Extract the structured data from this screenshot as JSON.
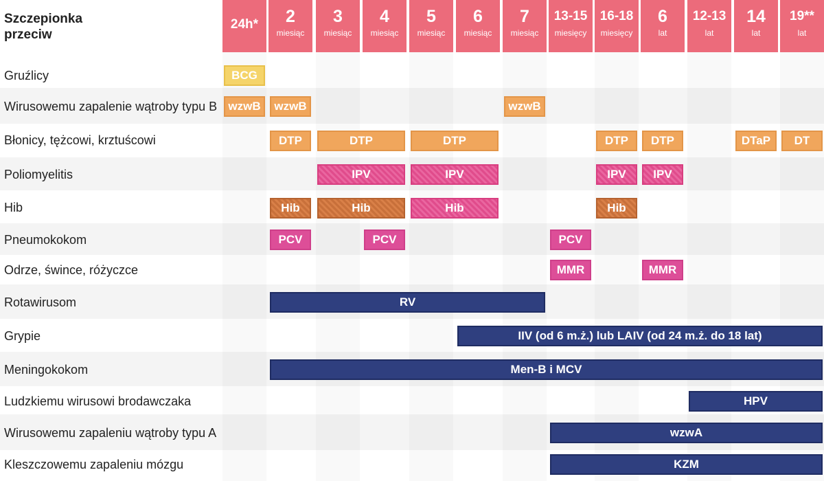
{
  "corner_title": "Szczepionka przeciw",
  "columns": [
    {
      "big": "24h*",
      "small": ""
    },
    {
      "big": "2",
      "small": "miesiąc"
    },
    {
      "big": "3",
      "small": "miesiąc"
    },
    {
      "big": "4",
      "small": "miesiąc"
    },
    {
      "big": "5",
      "small": "miesiąc"
    },
    {
      "big": "6",
      "small": "miesiąc"
    },
    {
      "big": "7",
      "small": "miesiąc"
    },
    {
      "big": "13-15",
      "small": "miesięcy"
    },
    {
      "big": "16-18",
      "small": "miesięcy"
    },
    {
      "big": "6",
      "small": "lat"
    },
    {
      "big": "12-13",
      "small": "lat"
    },
    {
      "big": "14",
      "small": "lat"
    },
    {
      "big": "19**",
      "small": "lat"
    }
  ],
  "rows": [
    {
      "label": "Gruźlicy"
    },
    {
      "label": "Wirusowemu zapalenie wątroby typu B"
    },
    {
      "label": "Błonicy, tężcowi, krztuścowi"
    },
    {
      "label": "Poliomyelitis"
    },
    {
      "label": "Hib"
    },
    {
      "label": "Pneumokokom"
    },
    {
      "label": "Odrze, śwince, różyczce"
    },
    {
      "label": "Rotawirusom"
    },
    {
      "label": "Grypie"
    },
    {
      "label": "Meningokokom"
    },
    {
      "label": "Ludzkiemu wirusowi brodawczaka"
    },
    {
      "label": "Wirusowemu zapaleniu wątroby typu A"
    },
    {
      "label": "Kleszczowemu zapaleniu mózgu"
    }
  ],
  "bars": [
    {
      "row": 0,
      "start": 0,
      "end": 0,
      "label": "BCG",
      "style": "yellow"
    },
    {
      "row": 1,
      "start": 0,
      "end": 0,
      "label": "wzwB",
      "style": "orange"
    },
    {
      "row": 1,
      "start": 1,
      "end": 1,
      "label": "wzwB",
      "style": "orange"
    },
    {
      "row": 1,
      "start": 6,
      "end": 6,
      "label": "wzwB",
      "style": "orange"
    },
    {
      "row": 2,
      "start": 1,
      "end": 1,
      "label": "DTP",
      "style": "orange"
    },
    {
      "row": 2,
      "start": 2,
      "end": 3,
      "label": "DTP",
      "style": "orange"
    },
    {
      "row": 2,
      "start": 4,
      "end": 5,
      "label": "DTP",
      "style": "orange"
    },
    {
      "row": 2,
      "start": 8,
      "end": 8,
      "label": "DTP",
      "style": "orange"
    },
    {
      "row": 2,
      "start": 9,
      "end": 9,
      "label": "DTP",
      "style": "orange"
    },
    {
      "row": 2,
      "start": 11,
      "end": 11,
      "label": "DTaP",
      "style": "orange"
    },
    {
      "row": 2,
      "start": 12,
      "end": 12,
      "label": "DT",
      "style": "orange"
    },
    {
      "row": 3,
      "start": 2,
      "end": 3,
      "label": "IPV",
      "style": "hatchpink"
    },
    {
      "row": 3,
      "start": 4,
      "end": 5,
      "label": "IPV",
      "style": "hatchpink"
    },
    {
      "row": 3,
      "start": 8,
      "end": 8,
      "label": "IPV",
      "style": "hatchpink"
    },
    {
      "row": 3,
      "start": 9,
      "end": 9,
      "label": "IPV",
      "style": "hatchpink"
    },
    {
      "row": 4,
      "start": 1,
      "end": 1,
      "label": "Hib",
      "style": "darkorange"
    },
    {
      "row": 4,
      "start": 2,
      "end": 3,
      "label": "Hib",
      "style": "darkorange"
    },
    {
      "row": 4,
      "start": 4,
      "end": 5,
      "label": "Hib",
      "style": "hatchpink"
    },
    {
      "row": 4,
      "start": 8,
      "end": 8,
      "label": "Hib",
      "style": "darkorange"
    },
    {
      "row": 5,
      "start": 1,
      "end": 1,
      "label": "PCV",
      "style": "magenta"
    },
    {
      "row": 5,
      "start": 3,
      "end": 3,
      "label": "PCV",
      "style": "magenta"
    },
    {
      "row": 5,
      "start": 7,
      "end": 7,
      "label": "PCV",
      "style": "magenta"
    },
    {
      "row": 6,
      "start": 7,
      "end": 7,
      "label": "MMR",
      "style": "magenta"
    },
    {
      "row": 6,
      "start": 9,
      "end": 9,
      "label": "MMR",
      "style": "magenta"
    },
    {
      "row": 7,
      "start": 1,
      "end": 6,
      "label": "RV",
      "style": "navy"
    },
    {
      "row": 8,
      "start": 5,
      "end": 12,
      "label": "IIV (od 6 m.ż.) lub LAIV (od 24 m.ż. do 18 lat)",
      "style": "navy"
    },
    {
      "row": 9,
      "start": 1,
      "end": 12,
      "label": "Men-B i MCV",
      "style": "navy"
    },
    {
      "row": 10,
      "start": 10,
      "end": 12,
      "label": "HPV",
      "style": "navy"
    },
    {
      "row": 11,
      "start": 7,
      "end": 12,
      "label": "wzwA",
      "style": "navy"
    },
    {
      "row": 12,
      "start": 7,
      "end": 12,
      "label": "KZM",
      "style": "navy"
    }
  ],
  "colors": {
    "header_bg": "#ec6b7b",
    "yellow": "#f5d46a",
    "orange": "#f0a65c",
    "dark_orange": "#c8703a",
    "pink": "#e04c8c",
    "magenta": "#dd4e98",
    "navy": "#2f3f7f"
  }
}
